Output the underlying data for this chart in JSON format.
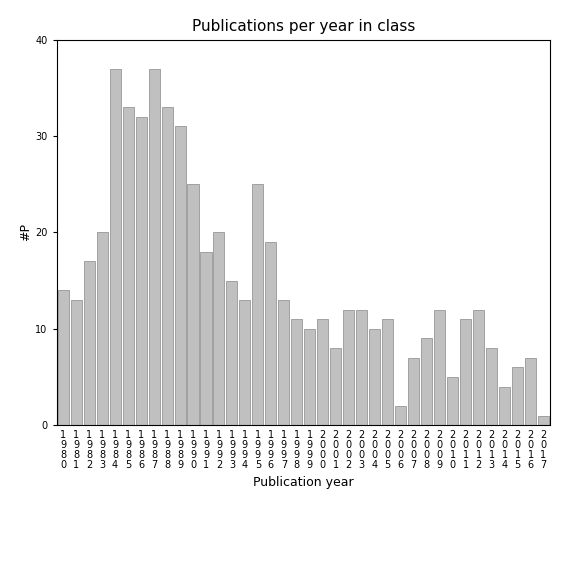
{
  "title": "Publications per year in class",
  "xlabel": "Publication year",
  "ylabel": "#P",
  "ylim": [
    0,
    40
  ],
  "yticks": [
    0,
    10,
    20,
    30,
    40
  ],
  "bar_color": "#c0c0c0",
  "bar_edgecolor": "#888888",
  "categories": [
    "1980",
    "1981",
    "1982",
    "1983",
    "1984",
    "1985",
    "1986",
    "1987",
    "1988",
    "1989",
    "1990",
    "1991",
    "1992",
    "1993",
    "1994",
    "1995",
    "1996",
    "1997",
    "1998",
    "1999",
    "2000",
    "2001",
    "2002",
    "2003",
    "2004",
    "2005",
    "2006",
    "2007",
    "2008",
    "2009",
    "2010",
    "2011",
    "2012",
    "2013",
    "2014",
    "2015",
    "2016",
    "2017"
  ],
  "values": [
    14,
    13,
    17,
    20,
    37,
    33,
    32,
    37,
    33,
    31,
    25,
    18,
    20,
    15,
    13,
    25,
    19,
    13,
    11,
    10,
    11,
    8,
    12,
    12,
    10,
    11,
    2,
    7,
    9,
    12,
    5,
    11,
    12,
    8,
    4,
    6,
    7,
    1
  ],
  "background_color": "#ffffff",
  "title_fontsize": 11,
  "label_fontsize": 9,
  "tick_fontsize": 7
}
